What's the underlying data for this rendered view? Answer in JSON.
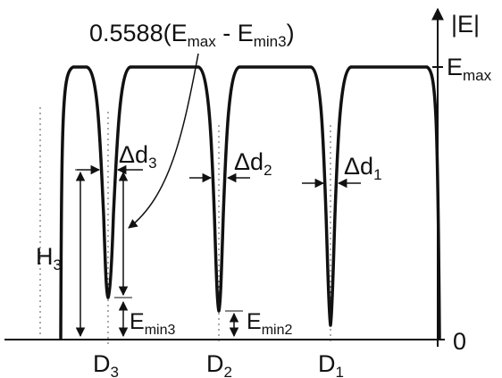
{
  "annotation": {
    "coefficient": "0.5588(",
    "e_max": "E",
    "e_max_sub": "max",
    "minus": " - ",
    "e_min": "E",
    "e_min_sub": "min3",
    "close": ")"
  },
  "axis": {
    "y_label": "|E|",
    "e_max_label": "E",
    "e_max_sub": "max",
    "zero_label": "0"
  },
  "widths": [
    {
      "delta": "Δd",
      "sub": "3"
    },
    {
      "delta": "Δd",
      "sub": "2"
    },
    {
      "delta": "Δd",
      "sub": "1"
    }
  ],
  "height": {
    "label": "H",
    "sub": "3"
  },
  "minima": [
    {
      "label": "E",
      "sub": "min3"
    },
    {
      "label": "E",
      "sub": "min2"
    }
  ],
  "positions": [
    {
      "label": "D",
      "sub": "3"
    },
    {
      "label": "D",
      "sub": "2"
    },
    {
      "label": "D",
      "sub": "1"
    }
  ]
}
